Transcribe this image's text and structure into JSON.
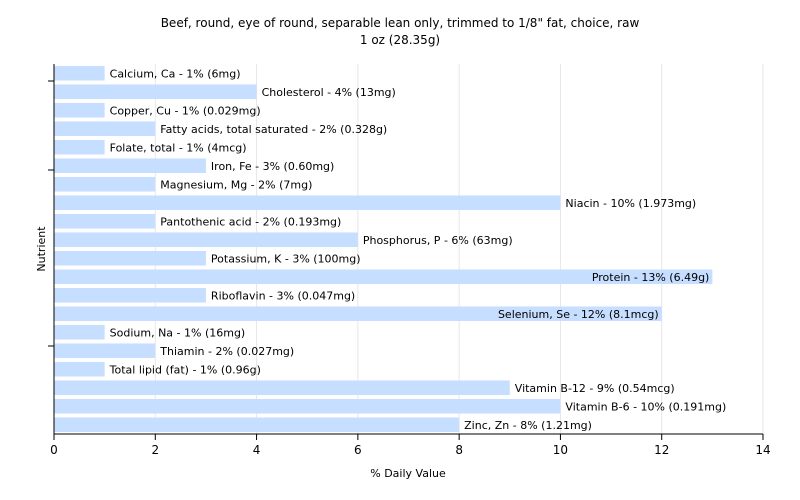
{
  "chart_data": {
    "type": "bar",
    "orientation": "horizontal",
    "title": "Beef, round, eye of round, separable lean only, trimmed to 1/8\" fat, choice, raw",
    "subtitle": "1 oz (28.35g)",
    "xlabel": "% Daily Value",
    "ylabel": "Nutrient",
    "xlim": [
      0,
      14
    ],
    "xticks": [
      0,
      2,
      4,
      6,
      8,
      10,
      12,
      14
    ],
    "grid": true,
    "bar_color": "#c6deff",
    "categories": [
      "Calcium, Ca",
      "Cholesterol",
      "Copper, Cu",
      "Fatty acids, total saturated",
      "Folate, total",
      "Iron, Fe",
      "Magnesium, Mg",
      "Niacin",
      "Pantothenic acid",
      "Phosphorus, P",
      "Potassium, K",
      "Protein",
      "Riboflavin",
      "Selenium, Se",
      "Sodium, Na",
      "Thiamin",
      "Total lipid (fat)",
      "Vitamin B-12",
      "Vitamin B-6",
      "Zinc, Zn"
    ],
    "values": [
      1,
      4,
      1,
      2,
      1,
      3,
      2,
      10,
      2,
      6,
      3,
      13,
      3,
      12,
      1,
      2,
      1,
      9,
      10,
      8
    ],
    "labels": [
      "Calcium, Ca - 1% (6mg)",
      "Cholesterol - 4% (13mg)",
      "Copper, Cu - 1% (0.029mg)",
      "Fatty acids, total saturated - 2% (0.328g)",
      "Folate, total - 1% (4mcg)",
      "Iron, Fe - 3% (0.60mg)",
      "Magnesium, Mg - 2% (7mg)",
      "Niacin - 10% (1.973mg)",
      "Pantothenic acid - 2% (0.193mg)",
      "Phosphorus, P - 6% (63mg)",
      "Potassium, K - 3% (100mg)",
      "Protein - 13% (6.49g)",
      "Riboflavin - 3% (0.047mg)",
      "Selenium, Se - 12% (8.1mcg)",
      "Sodium, Na - 1% (16mg)",
      "Thiamin - 2% (0.027mg)",
      "Total lipid (fat) - 1% (0.96g)",
      "Vitamin B-12 - 9% (0.54mcg)",
      "Vitamin B-6 - 10% (0.191mg)",
      "Zinc, Zn - 8% (1.21mg)"
    ]
  }
}
